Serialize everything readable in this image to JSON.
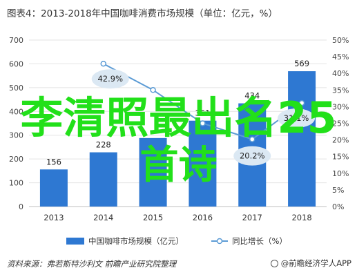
{
  "title": "图表4：2013-2018年中国咖啡消费市场规模（单位：亿元，%）",
  "source": "资料来源：弗若斯特沙利文 前瞻产业研究院整理",
  "brand": "@前瞻经济学人APP",
  "overlay": {
    "line1": "李清照最出名25",
    "line2": "首诗"
  },
  "colors": {
    "bar": "#2e78d2",
    "line": "#5b9bd5",
    "label_bubble": "#dbe8f3",
    "overlay_text": "#22e01a"
  },
  "chart_data": {
    "type": "bar",
    "categories": [
      "2013",
      "2014",
      "2015",
      "2016",
      "2017",
      "2018"
    ],
    "series": [
      {
        "name": "中国咖啡市场规模（亿元）",
        "type": "bar",
        "axis": "left",
        "values": [
          156,
          228,
          288,
          361,
          434,
          569
        ],
        "labels": [
          "156",
          "228",
          "",
          "361",
          "434",
          "569"
        ]
      },
      {
        "name": "同比增长（%）",
        "type": "line",
        "axis": "right",
        "values": [
          null,
          42.9,
          35,
          25,
          20.2,
          31.1
        ],
        "labels": [
          "",
          "42.9%",
          "",
          "",
          "20.2%",
          "31.1%"
        ]
      }
    ],
    "left_axis": {
      "min": 0,
      "max": 700,
      "ticks": [
        "0",
        "100",
        "200",
        "300",
        "400",
        "500",
        "600",
        "700"
      ]
    },
    "right_axis": {
      "min": 0,
      "max": 50,
      "ticks": [
        "0%",
        "5%",
        "10%",
        "15%",
        "20%",
        "25%",
        "30%",
        "35%",
        "40%",
        "45%",
        "50%"
      ]
    },
    "grid": true,
    "legend_position": "bottom"
  }
}
